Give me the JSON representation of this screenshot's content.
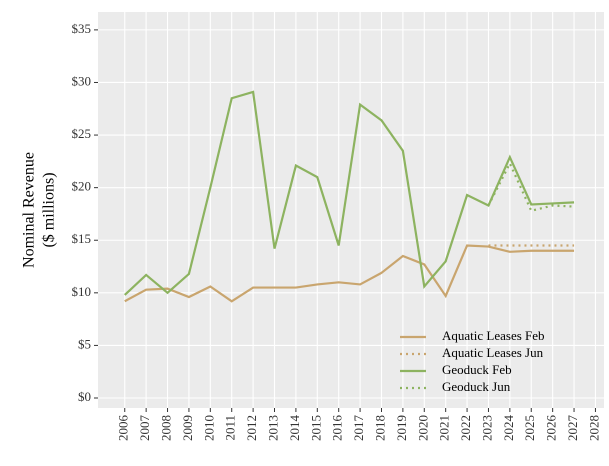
{
  "chart_data": {
    "type": "line",
    "y_label": [
      "Nominal Revenue",
      "($ millions)"
    ],
    "x": [
      2006,
      2007,
      2008,
      2009,
      2010,
      2011,
      2012,
      2013,
      2014,
      2015,
      2016,
      2017,
      2018,
      2019,
      2020,
      2021,
      2022,
      2023,
      2024,
      2025,
      2026,
      2027
    ],
    "series": [
      {
        "name": "Aquatic Leases Feb",
        "color": "#c9a56e",
        "dash": false,
        "values": [
          9.2,
          10.3,
          10.4,
          9.6,
          10.6,
          9.2,
          10.5,
          10.5,
          10.5,
          10.8,
          11.0,
          10.8,
          11.9,
          13.5,
          12.7,
          9.7,
          14.5,
          14.4,
          13.9,
          14.0,
          14.0,
          14.0
        ]
      },
      {
        "name": "Aquatic Leases Jun",
        "color": "#c9a56e",
        "dash": true,
        "values": [
          null,
          null,
          null,
          null,
          null,
          null,
          null,
          null,
          null,
          null,
          null,
          null,
          null,
          null,
          null,
          null,
          null,
          14.5,
          14.5,
          14.5,
          14.5,
          14.5
        ]
      },
      {
        "name": "Geoduck Feb",
        "color": "#8db360",
        "dash": false,
        "values": [
          9.8,
          11.7,
          10.0,
          11.8,
          20.0,
          28.5,
          29.1,
          14.2,
          22.1,
          21.0,
          14.5,
          27.9,
          26.4,
          23.5,
          10.6,
          13.0,
          19.3,
          18.3,
          22.9,
          18.4,
          18.5,
          18.6
        ]
      },
      {
        "name": "Geoduck Jun",
        "color": "#8db360",
        "dash": true,
        "values": [
          null,
          null,
          null,
          null,
          null,
          null,
          null,
          null,
          null,
          null,
          null,
          null,
          null,
          null,
          null,
          null,
          null,
          18.3,
          22.3,
          17.8,
          18.3,
          18.2
        ]
      }
    ],
    "xlim": [
      2004.75,
      2028.4
    ],
    "xticks": [
      2006,
      2007,
      2008,
      2009,
      2010,
      2011,
      2012,
      2013,
      2014,
      2015,
      2016,
      2017,
      2018,
      2019,
      2020,
      2021,
      2022,
      2023,
      2024,
      2025,
      2026,
      2027,
      2028
    ],
    "ylim": [
      -0.95,
      36.7
    ],
    "yticks": [
      {
        "value": 0,
        "label": "$0"
      },
      {
        "value": 5,
        "label": "$5"
      },
      {
        "value": 10,
        "label": "$10"
      },
      {
        "value": 15,
        "label": "$15"
      },
      {
        "value": 20,
        "label": "$20"
      },
      {
        "value": 25,
        "label": "$25"
      },
      {
        "value": 30,
        "label": "$30"
      },
      {
        "value": 35,
        "label": "$35"
      }
    ],
    "grid": true,
    "legend": "bottom-right"
  }
}
